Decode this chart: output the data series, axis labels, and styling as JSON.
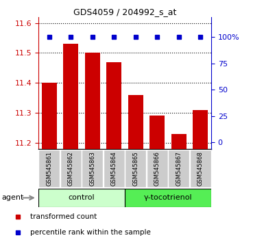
{
  "title": "GDS4059 / 204992_s_at",
  "samples": [
    "GSM545861",
    "GSM545862",
    "GSM545863",
    "GSM545864",
    "GSM545865",
    "GSM545866",
    "GSM545867",
    "GSM545868"
  ],
  "bar_values": [
    11.4,
    11.53,
    11.5,
    11.47,
    11.36,
    11.29,
    11.23,
    11.31
  ],
  "bar_color": "#cc0000",
  "percentile_color": "#0000cc",
  "ylim_left": [
    11.18,
    11.62
  ],
  "ylim_right": [
    -6,
    119
  ],
  "yticks_left": [
    11.2,
    11.3,
    11.4,
    11.5,
    11.6
  ],
  "yticks_right": [
    0,
    25,
    50,
    75,
    100
  ],
  "yticklabels_right": [
    "0",
    "25",
    "50",
    "75",
    "100%"
  ],
  "groups": [
    {
      "label": "control",
      "indices": [
        0,
        1,
        2,
        3
      ],
      "color": "#ccffcc"
    },
    {
      "label": "γ-tocotrienol",
      "indices": [
        4,
        5,
        6,
        7
      ],
      "color": "#55ee55"
    }
  ],
  "legend_bar_label": "transformed count",
  "legend_dot_label": "percentile rank within the sample",
  "tick_bg_color": "#cccccc",
  "bar_width": 0.7,
  "bar_bottom": 11.18
}
